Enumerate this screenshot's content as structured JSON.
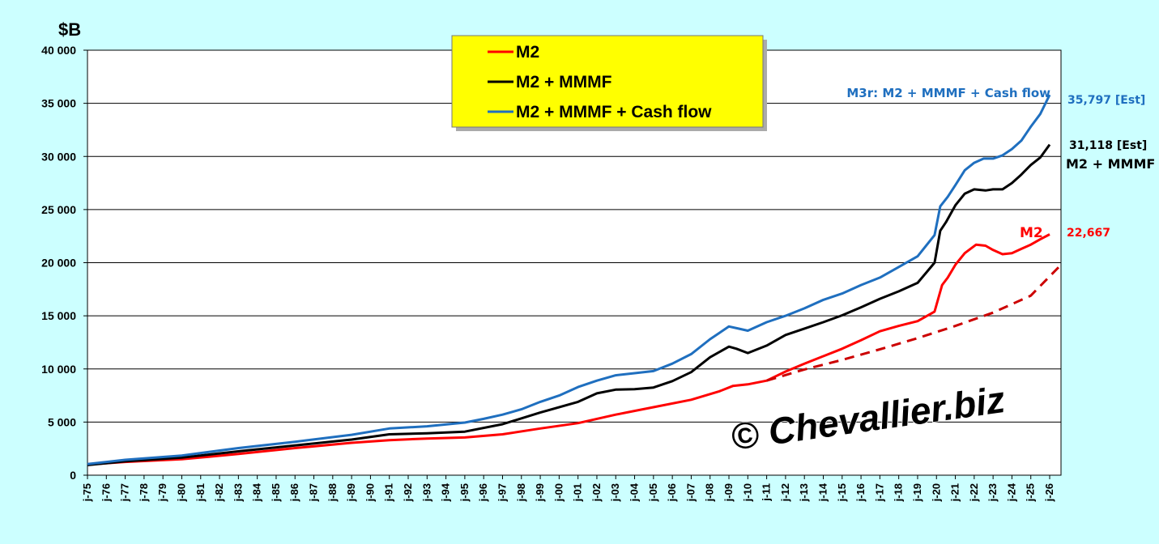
{
  "chart_data": {
    "type": "line",
    "ylabel": "$B",
    "ylim": [
      0,
      40000
    ],
    "y_ticks": [
      0,
      5000,
      10000,
      15000,
      20000,
      25000,
      30000,
      35000,
      40000
    ],
    "y_tick_labels": [
      "0",
      "5 000",
      "10 000",
      "15 000",
      "20 000",
      "25 000",
      "30 000",
      "35 000",
      "40 000"
    ],
    "x_range": [
      1975,
      2026.6
    ],
    "x_ticks": [
      1975,
      1976,
      1977,
      1978,
      1979,
      1980,
      1981,
      1982,
      1983,
      1984,
      1985,
      1986,
      1987,
      1988,
      1989,
      1990,
      1991,
      1992,
      1993,
      1994,
      1995,
      1996,
      1997,
      1998,
      1999,
      2000,
      2001,
      2002,
      2003,
      2004,
      2005,
      2006,
      2007,
      2008,
      2009,
      2010,
      2011,
      2012,
      2013,
      2014,
      2015,
      2016,
      2017,
      2018,
      2019,
      2020,
      2021,
      2022,
      2023,
      2024,
      2025,
      2026
    ],
    "x_tick_labels": [
      "j-75",
      "j-76",
      "j-77",
      "j-78",
      "j-79",
      "j-80",
      "j-81",
      "j-82",
      "j-83",
      "j-84",
      "j-85",
      "j-86",
      "j-87",
      "j-88",
      "j-89",
      "j-90",
      "j-91",
      "j-92",
      "j-93",
      "j-94",
      "j-95",
      "j-96",
      "j-97",
      "j-98",
      "j-99",
      "j-00",
      "j-01",
      "j-02",
      "j-03",
      "j-04",
      "j-05",
      "j-06",
      "j-07",
      "j-08",
      "j-09",
      "j-10",
      "j-11",
      "j-12",
      "j-13",
      "j-14",
      "j-15",
      "j-16",
      "j-17",
      "j-18",
      "j-19",
      "j-20",
      "j-21",
      "j-22",
      "j-23",
      "j-24",
      "j-25",
      "j-26"
    ],
    "grid": "horizontal",
    "legend_position": "top-center",
    "series": [
      {
        "name": "M2",
        "color": "#ff0000",
        "dash": false,
        "x": [
          1975,
          1977,
          1980,
          1983,
          1986,
          1989,
          1991,
          1993,
          1995,
          1997,
          1999,
          2001,
          2003,
          2005,
          2007,
          2008.5,
          2009.2,
          2010,
          2011,
          2012,
          2013,
          2014,
          2015,
          2016,
          2017,
          2018,
          2019,
          2019.9,
          2020.3,
          2020.6,
          2021,
          2021.5,
          2022.1,
          2022.6,
          2023,
          2023.5,
          2024,
          2024.5,
          2025,
          2025.5,
          2026
        ],
        "y": [
          1000,
          1250,
          1500,
          2000,
          2550,
          3050,
          3300,
          3450,
          3550,
          3850,
          4400,
          4900,
          5700,
          6400,
          7100,
          7900,
          8400,
          8550,
          8900,
          9750,
          10500,
          11200,
          11900,
          12700,
          13550,
          14050,
          14500,
          15400,
          17900,
          18600,
          19800,
          20900,
          21700,
          21600,
          21200,
          20800,
          20900,
          21300,
          21700,
          22200,
          22667
        ]
      },
      {
        "name": "M2 + MMMF",
        "color": "#000000",
        "dash": false,
        "x": [
          1975,
          1977,
          1980,
          1983,
          1986,
          1989,
          1991,
          1993,
          1995,
          1997,
          1999,
          2001,
          2002,
          2003,
          2004,
          2005,
          2006,
          2007,
          2008,
          2009,
          2009.4,
          2010,
          2011,
          2012,
          2013,
          2014,
          2015,
          2016,
          2017,
          2018,
          2019,
          2019.9,
          2020.2,
          2020.5,
          2021,
          2021.5,
          2022,
          2022.6,
          2023,
          2023.5,
          2024,
          2024.5,
          2025,
          2025.5,
          2026
        ],
        "y": [
          950,
          1300,
          1650,
          2250,
          2800,
          3350,
          3850,
          3950,
          4100,
          4800,
          5900,
          6900,
          7700,
          8050,
          8100,
          8250,
          8850,
          9700,
          11100,
          12100,
          11900,
          11500,
          12200,
          13200,
          13800,
          14400,
          15050,
          15800,
          16600,
          17300,
          18100,
          20000,
          23000,
          23800,
          25400,
          26500,
          26900,
          26800,
          26900,
          26900,
          27500,
          28300,
          29200,
          29900,
          31118
        ]
      },
      {
        "name": "M2 + MMMF + Cash flow",
        "color": "#1f6fbf",
        "dash": false,
        "x": [
          1975,
          1977,
          1980,
          1983,
          1986,
          1989,
          1991,
          1993,
          1995,
          1996,
          1997,
          1998,
          1999,
          2000,
          2001,
          2002,
          2003,
          2004,
          2005,
          2006,
          2007,
          2008,
          2009,
          2009.5,
          2010,
          2011,
          2012,
          2013,
          2014,
          2015,
          2016,
          2017,
          2018,
          2019,
          2019.9,
          2020.2,
          2020.6,
          2021,
          2021.5,
          2022,
          2022.5,
          2023,
          2023.5,
          2024,
          2024.5,
          2025,
          2025.5,
          2026
        ],
        "y": [
          1050,
          1450,
          1850,
          2550,
          3150,
          3800,
          4400,
          4600,
          4950,
          5300,
          5700,
          6200,
          6900,
          7500,
          8300,
          8900,
          9400,
          9600,
          9800,
          10500,
          11400,
          12800,
          14000,
          13800,
          13600,
          14400,
          15000,
          15700,
          16500,
          17100,
          17900,
          18600,
          19600,
          20600,
          22600,
          25300,
          26200,
          27300,
          28700,
          29400,
          29800,
          29800,
          30100,
          30700,
          31500,
          32800,
          34000,
          35797
        ]
      },
      {
        "name": "",
        "color": "#cc0000",
        "dash": true,
        "x": [
          2011,
          2013,
          2015,
          2017,
          2019,
          2021,
          2023,
          2025,
          2026.6
        ],
        "y": [
          8900,
          9950,
          10850,
          11850,
          12900,
          14050,
          15300,
          16900,
          19800
        ]
      }
    ],
    "legend": [
      {
        "label": "M2",
        "color": "#ff0000"
      },
      {
        "label": "M2 + MMMF",
        "color": "#000000"
      },
      {
        "label": "M2 + MMMF + Cash flow",
        "color": "#1f6fbf"
      }
    ],
    "annotations": {
      "blue_series_label": "M3r: M2 + MMMF + Cash flow",
      "blue_end_value": "35,797 [Est]",
      "black_end_value": "31,118 [Est]",
      "black_series_label": "M2 + MMMF",
      "red_series_label": "M2",
      "red_end_value": "22,667",
      "watermark": "© Chevallier.biz"
    },
    "colors": {
      "background": "#ccffff",
      "plot_background": "#ffffff",
      "legend_background": "#ffff00",
      "blue": "#1f6fbf",
      "red": "#ff0000",
      "dashed_red": "#cc0000"
    }
  }
}
